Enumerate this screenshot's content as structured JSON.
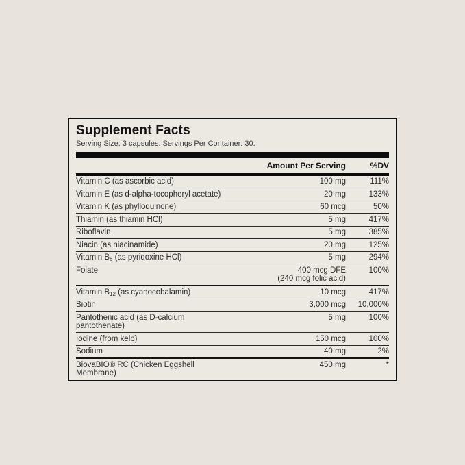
{
  "page": {
    "background_color": "#e8e3dc"
  },
  "panel": {
    "title": "Supplement Facts",
    "serving_info": "Serving Size: 3 capsules. Servings Per Container: 30.",
    "columns": {
      "amount_header": "Amount Per Serving",
      "dv_header": "%DV"
    },
    "rows": [
      {
        "name": "Vitamin C (as ascorbic acid)",
        "amount": "100 mg",
        "dv": "111%"
      },
      {
        "name": "Vitamin E (as d-alpha-tocopheryl acetate)",
        "amount": "20 mg",
        "dv": "133%"
      },
      {
        "name": "Vitamin K (as phylloquinone)",
        "amount": "60 mcg",
        "dv": "50%"
      },
      {
        "name": "Thiamin (as thiamin HCl)",
        "amount": "5 mg",
        "dv": "417%"
      },
      {
        "name": "Riboflavin",
        "amount": "5 mg",
        "dv": "385%"
      },
      {
        "name": "Niacin (as niacinamide)",
        "amount": "20 mg",
        "dv": "125%"
      },
      {
        "name": "Vitamin B",
        "name_sub": "6",
        "name_after": " (as pyridoxine HCl)",
        "amount": "5 mg",
        "dv": "294%"
      },
      {
        "name": "Folate",
        "amount": "400 mcg DFE",
        "amount2": "(240 mcg folic acid)",
        "dv": "100%"
      },
      {
        "name": "Vitamin B",
        "name_sub": "12",
        "name_after": " (as cyanocobalamin)",
        "amount": "10 mcg",
        "dv": "417%",
        "top_border": "medium"
      },
      {
        "name": "Biotin",
        "amount": "3,000 mcg",
        "dv": "10,000%"
      },
      {
        "name": "Pantothenic acid (as D-calcium pantothenate)",
        "amount": "5 mg",
        "dv": "100%"
      },
      {
        "name": "Iodine (from kelp)",
        "amount": "150 mcg",
        "dv": "100%"
      },
      {
        "name": "Sodium",
        "amount": "40 mg",
        "dv": "2%"
      },
      {
        "name": "BiovaBIO® RC (Chicken Eggshell Membrane)",
        "amount": "450 mg",
        "dv": "*",
        "top_border": "medium"
      }
    ],
    "colors": {
      "panel_background": "#ece9e3",
      "border": "#111111",
      "divider_bar": "#0b0b0b",
      "text": "#2d2d2d"
    }
  }
}
